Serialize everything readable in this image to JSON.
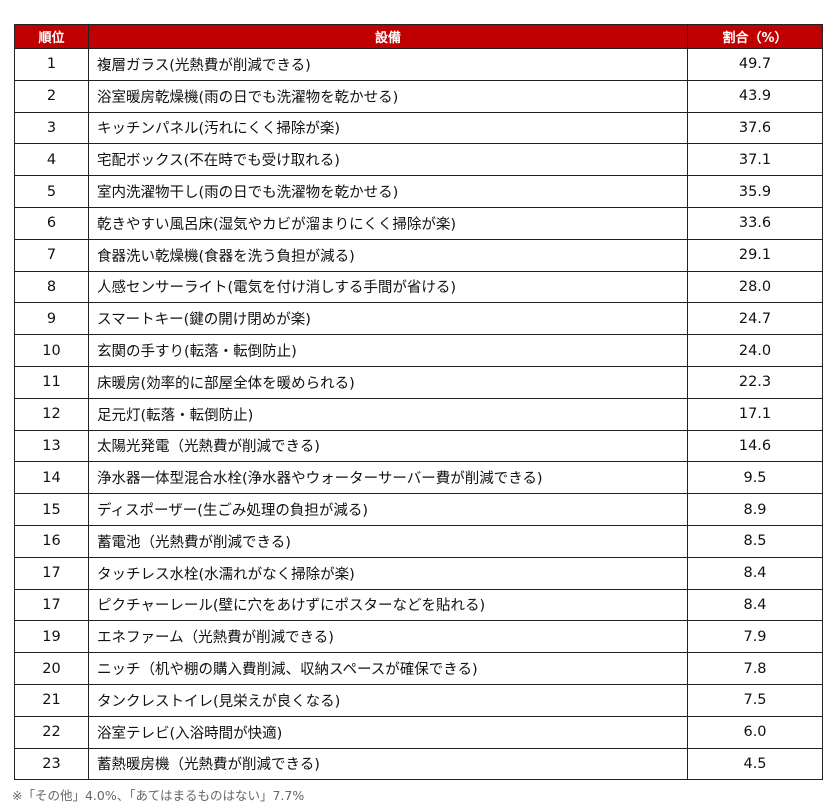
{
  "table": {
    "headers": {
      "rank": "順位",
      "item": "設備",
      "pct": "割合（%）"
    },
    "header_color": "#c00000",
    "rows": [
      {
        "rank": "1",
        "item": "複層ガラス(光熱費が削減できる)",
        "pct": "49.7"
      },
      {
        "rank": "2",
        "item": "浴室暖房乾燥機(雨の日でも洗濯物を乾かせる)",
        "pct": "43.9"
      },
      {
        "rank": "3",
        "item": "キッチンパネル(汚れにくく掃除が楽)",
        "pct": "37.6"
      },
      {
        "rank": "4",
        "item": "宅配ボックス(不在時でも受け取れる)",
        "pct": "37.1"
      },
      {
        "rank": "5",
        "item": "室内洗濯物干し(雨の日でも洗濯物を乾かせる)",
        "pct": "35.9"
      },
      {
        "rank": "6",
        "item": "乾きやすい風呂床(湿気やカビが溜まりにくく掃除が楽)",
        "pct": "33.6"
      },
      {
        "rank": "7",
        "item": "食器洗い乾燥機(食器を洗う負担が減る)",
        "pct": "29.1"
      },
      {
        "rank": "8",
        "item": "人感センサーライト(電気を付け消しする手間が省ける)",
        "pct": "28.0"
      },
      {
        "rank": "9",
        "item": "スマートキー(鍵の開け閉めが楽)",
        "pct": "24.7"
      },
      {
        "rank": "10",
        "item": "玄関の手すり(転落・転倒防止)",
        "pct": "24.0"
      },
      {
        "rank": "11",
        "item": "床暖房(効率的に部屋全体を暖められる)",
        "pct": "22.3"
      },
      {
        "rank": "12",
        "item": "足元灯(転落・転倒防止)",
        "pct": "17.1"
      },
      {
        "rank": "13",
        "item": "太陽光発電（光熱費が削減できる)",
        "pct": "14.6"
      },
      {
        "rank": "14",
        "item": "浄水器一体型混合水栓(浄水器やウォーターサーバー費が削減できる)",
        "pct": "9.5"
      },
      {
        "rank": "15",
        "item": "ディスポーザー(生ごみ処理の負担が減る)",
        "pct": "8.9"
      },
      {
        "rank": "16",
        "item": "蓄電池（光熱費が削減できる)",
        "pct": "8.5"
      },
      {
        "rank": "17",
        "item": "タッチレス水栓(水濡れがなく掃除が楽)",
        "pct": "8.4"
      },
      {
        "rank": "17",
        "item": "ピクチャーレール(壁に穴をあけずにポスターなどを貼れる)",
        "pct": "8.4"
      },
      {
        "rank": "19",
        "item": "エネファーム（光熱費が削減できる)",
        "pct": "7.9"
      },
      {
        "rank": "20",
        "item": "ニッチ（机や棚の購入費削減、収納スペースが確保できる)",
        "pct": "7.8"
      },
      {
        "rank": "21",
        "item": "タンクレストイレ(見栄えが良くなる)",
        "pct": "7.5"
      },
      {
        "rank": "22",
        "item": "浴室テレビ(入浴時間が快適)",
        "pct": "6.0"
      },
      {
        "rank": "23",
        "item": "蓄熱暖房機（光熱費が削減できる)",
        "pct": "4.5"
      }
    ]
  },
  "footnote": "※「その他」4.0%、「あてはまるものはない」7.7%"
}
